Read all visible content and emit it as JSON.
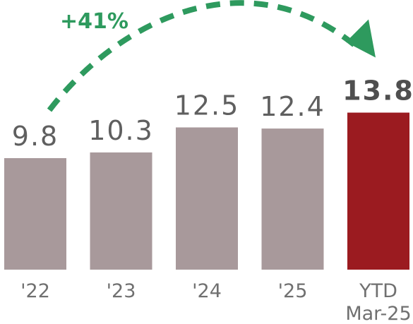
{
  "chart_data": {
    "type": "bar",
    "categories": [
      "'22",
      "'23",
      "'24",
      "'25",
      "YTD\nMar-25"
    ],
    "values": [
      9.8,
      10.3,
      12.5,
      12.4,
      13.8
    ],
    "value_labels": [
      "9.8",
      "10.3",
      "12.5",
      "12.4",
      "13.8"
    ],
    "highlight_index": 4,
    "title": "",
    "xlabel": "",
    "ylabel": "",
    "ylim": [
      0,
      15
    ],
    "grid": false,
    "colors": {
      "bar": "#a8999b",
      "highlight": "#9b1b20",
      "arrow": "#2e9a5e"
    },
    "annotation": {
      "text": "+41%",
      "from_index": 0,
      "to_index": 4
    }
  }
}
